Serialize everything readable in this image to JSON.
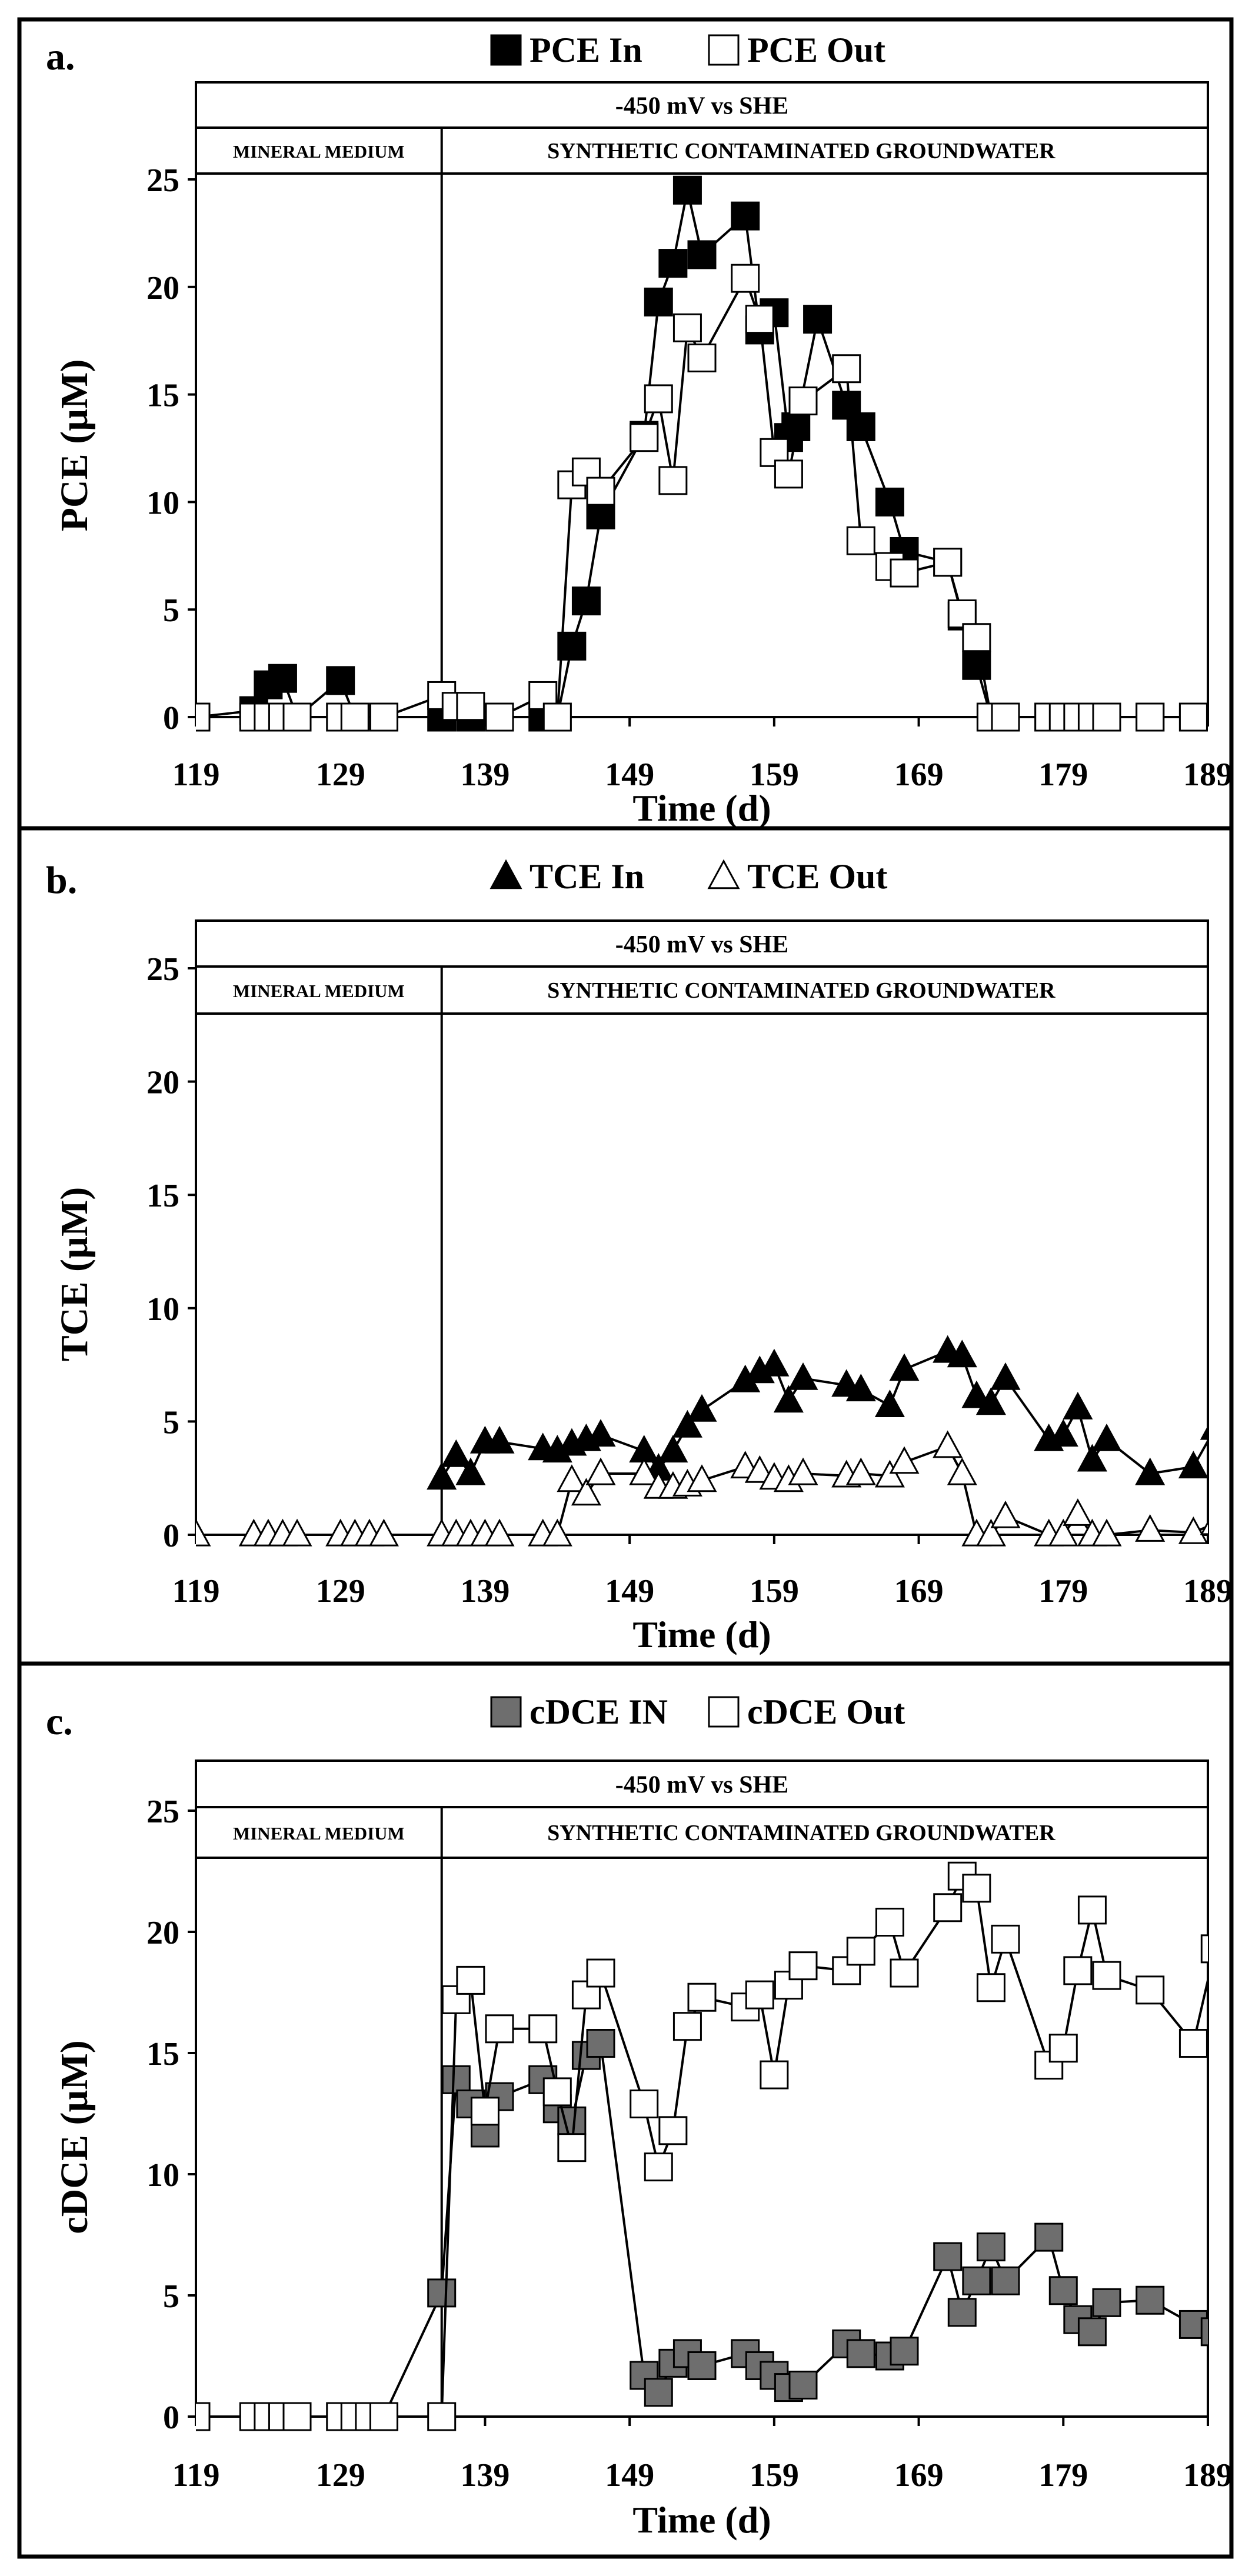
{
  "chart_data": [
    {
      "type": "line",
      "panel_label": "a.",
      "ylabel": "PCE (µM)",
      "xlabel": "Time (d)",
      "xlim": [
        119,
        189
      ],
      "ylim": [
        0,
        25
      ],
      "x_ticks": [
        "119",
        "129",
        "139",
        "149",
        "159",
        "169",
        "179",
        "189"
      ],
      "y_ticks": [
        "0",
        "5",
        "10",
        "15",
        "20",
        "25"
      ],
      "band_top": "-450 mV vs SHE",
      "band_left": "MINERAL MEDIUM",
      "band_right": "SYNTHETIC CONTAMINATED GROUNDWATER",
      "phase_boundary_x": 136,
      "grid": false,
      "legend_position": "top-center",
      "series": [
        {
          "name": "PCE In",
          "marker": "square",
          "fill": "#000000",
          "points": [
            [
              119,
              0
            ],
            [
              123,
              0.3
            ],
            [
              124,
              1.5
            ],
            [
              125,
              1.8
            ],
            [
              126,
              0
            ],
            [
              129,
              1.7
            ],
            [
              130,
              0
            ],
            [
              132,
              0
            ],
            [
              136,
              0
            ],
            [
              138,
              0
            ],
            [
              140,
              0
            ],
            [
              143,
              0
            ],
            [
              144,
              0
            ],
            [
              145,
              3.3
            ],
            [
              146,
              5.4
            ],
            [
              147,
              9.4
            ],
            [
              150,
              13.1
            ],
            [
              151,
              19.3
            ],
            [
              152,
              21.1
            ],
            [
              153,
              24.5
            ],
            [
              154,
              21.5
            ],
            [
              157,
              23.3
            ],
            [
              158,
              18.0
            ],
            [
              159,
              18.8
            ],
            [
              160,
              13.0
            ],
            [
              160.5,
              13.5
            ],
            [
              162,
              18.5
            ],
            [
              164,
              14.5
            ],
            [
              165,
              13.5
            ],
            [
              167,
              10
            ],
            [
              168,
              7.7
            ],
            [
              171,
              7.2
            ],
            [
              172,
              4.7
            ],
            [
              173,
              2.4
            ],
            [
              174,
              0
            ],
            [
              175,
              0
            ],
            [
              178,
              0
            ],
            [
              179,
              0
            ],
            [
              180,
              0
            ],
            [
              181,
              0
            ],
            [
              182,
              0
            ],
            [
              185,
              0
            ],
            [
              188,
              0
            ]
          ]
        },
        {
          "name": "PCE Out",
          "marker": "square",
          "fill": "#ffffff",
          "points": [
            [
              119,
              0
            ],
            [
              123,
              0
            ],
            [
              124,
              0
            ],
            [
              125,
              0
            ],
            [
              126,
              0
            ],
            [
              129,
              0
            ],
            [
              130,
              0
            ],
            [
              132,
              0
            ],
            [
              136,
              1
            ],
            [
              137,
              0.5
            ],
            [
              138,
              0.5
            ],
            [
              140,
              0
            ],
            [
              143,
              1
            ],
            [
              144,
              0
            ],
            [
              145,
              10.8
            ],
            [
              146,
              11.4
            ],
            [
              147,
              10.5
            ],
            [
              150,
              13.0
            ],
            [
              151,
              14.8
            ],
            [
              152,
              11.0
            ],
            [
              153,
              18.1
            ],
            [
              154,
              16.7
            ],
            [
              157,
              20.4
            ],
            [
              158,
              18.5
            ],
            [
              159,
              12.3
            ],
            [
              160,
              11.3
            ],
            [
              161,
              14.7
            ],
            [
              164,
              16.2
            ],
            [
              165,
              8.2
            ],
            [
              167,
              7.0
            ],
            [
              168,
              6.7
            ],
            [
              171,
              7.2
            ],
            [
              172,
              4.8
            ],
            [
              173,
              3.7
            ],
            [
              174,
              0
            ],
            [
              175,
              0
            ],
            [
              178,
              0
            ],
            [
              179,
              0
            ],
            [
              180,
              0
            ],
            [
              181,
              0
            ],
            [
              182,
              0
            ],
            [
              185,
              0
            ],
            [
              188,
              0
            ]
          ]
        }
      ]
    },
    {
      "type": "line",
      "panel_label": "b.",
      "ylabel": "TCE (µM)",
      "xlabel": "Time (d)",
      "xlim": [
        119,
        189
      ],
      "ylim": [
        0,
        25
      ],
      "x_ticks": [
        "119",
        "129",
        "139",
        "149",
        "159",
        "169",
        "179",
        "189"
      ],
      "y_ticks": [
        "0",
        "5",
        "10",
        "15",
        "20",
        "25"
      ],
      "band_top": "-450 mV vs SHE",
      "band_left": "MINERAL MEDIUM",
      "band_right": "SYNTHETIC CONTAMINATED GROUNDWATER",
      "phase_boundary_x": 136,
      "grid": false,
      "legend_position": "top-center",
      "series": [
        {
          "name": "TCE In",
          "marker": "triangle",
          "fill": "#000000",
          "points": [
            [
              136,
              2.5
            ],
            [
              137,
              3.5
            ],
            [
              138,
              2.7
            ],
            [
              139,
              4.1
            ],
            [
              140,
              4.1
            ],
            [
              143,
              3.8
            ],
            [
              144,
              3.7
            ],
            [
              145,
              4.0
            ],
            [
              146,
              4.2
            ],
            [
              147,
              4.4
            ],
            [
              150,
              3.7
            ],
            [
              151,
              2.9
            ],
            [
              152,
              3.7
            ],
            [
              153,
              4.8
            ],
            [
              154,
              5.5
            ],
            [
              157,
              6.8
            ],
            [
              158,
              7.2
            ],
            [
              159,
              7.5
            ],
            [
              160,
              5.9
            ],
            [
              161,
              6.9
            ],
            [
              164,
              6.6
            ],
            [
              165,
              6.4
            ],
            [
              167,
              5.7
            ],
            [
              168,
              7.3
            ],
            [
              171,
              8.1
            ],
            [
              172,
              7.9
            ],
            [
              173,
              6.1
            ],
            [
              174,
              5.8
            ],
            [
              175,
              6.9
            ],
            [
              178,
              4.2
            ],
            [
              179,
              4.4
            ],
            [
              180,
              5.6
            ],
            [
              181,
              3.3
            ],
            [
              182,
              4.2
            ],
            [
              185,
              2.7
            ],
            [
              188,
              3.0
            ],
            [
              189.5,
              4.7
            ]
          ]
        },
        {
          "name": "TCE Out",
          "marker": "triangle",
          "fill": "#ffffff",
          "points": [
            [
              119,
              0
            ],
            [
              123,
              0
            ],
            [
              124,
              0
            ],
            [
              125,
              0
            ],
            [
              126,
              0
            ],
            [
              129,
              0
            ],
            [
              130,
              0
            ],
            [
              131,
              0
            ],
            [
              132,
              0
            ],
            [
              136,
              0
            ],
            [
              137,
              0
            ],
            [
              138,
              0
            ],
            [
              139,
              0
            ],
            [
              140,
              0
            ],
            [
              143,
              0
            ],
            [
              144,
              0
            ],
            [
              145,
              2.4
            ],
            [
              146,
              1.8
            ],
            [
              147,
              2.7
            ],
            [
              150,
              2.7
            ],
            [
              151,
              2.1
            ],
            [
              152,
              2.1
            ],
            [
              153,
              2.2
            ],
            [
              154,
              2.4
            ],
            [
              157,
              3.0
            ],
            [
              158,
              2.8
            ],
            [
              159,
              2.5
            ],
            [
              160,
              2.4
            ],
            [
              161,
              2.7
            ],
            [
              164,
              2.6
            ],
            [
              165,
              2.7
            ],
            [
              167,
              2.6
            ],
            [
              168,
              3.2
            ],
            [
              171,
              3.9
            ],
            [
              172,
              2.7
            ],
            [
              173,
              0
            ],
            [
              174,
              0
            ],
            [
              175,
              0.8
            ],
            [
              178,
              0
            ],
            [
              179,
              0
            ],
            [
              180,
              0.9
            ],
            [
              181,
              0
            ],
            [
              182,
              0
            ],
            [
              185,
              0.2
            ],
            [
              188,
              0.1
            ],
            [
              189.5,
              0.5
            ]
          ]
        }
      ]
    },
    {
      "type": "line",
      "panel_label": "c.",
      "ylabel": "cDCE (µM)",
      "xlabel": "Time (d)",
      "xlim": [
        119,
        189
      ],
      "ylim": [
        0,
        25
      ],
      "x_ticks": [
        "119",
        "129",
        "139",
        "149",
        "159",
        "169",
        "179",
        "189"
      ],
      "y_ticks": [
        "0",
        "5",
        "10",
        "15",
        "20",
        "25"
      ],
      "band_top": "-450 mV vs SHE",
      "band_left": "MINERAL MEDIUM",
      "band_right": "SYNTHETIC CONTAMINATED GROUNDWATER",
      "phase_boundary_x": 136,
      "grid": false,
      "legend_position": "top-center",
      "series": [
        {
          "name": "cDCE IN",
          "marker": "square",
          "fill": "#6e6e6e",
          "points": [
            [
              132,
              0
            ],
            [
              136,
              5.1
            ],
            [
              137,
              13.9
            ],
            [
              138,
              12.9
            ],
            [
              139,
              11.7
            ],
            [
              140,
              13.2
            ],
            [
              143,
              13.9
            ],
            [
              144,
              12.7
            ],
            [
              145,
              12.2
            ],
            [
              146,
              14.9
            ],
            [
              147,
              15.4
            ],
            [
              150,
              1.7
            ],
            [
              151,
              1.0
            ],
            [
              152,
              2.2
            ],
            [
              153,
              2.6
            ],
            [
              154,
              2.1
            ],
            [
              157,
              2.6
            ],
            [
              158,
              2.1
            ],
            [
              159,
              1.7
            ],
            [
              160,
              1.2
            ],
            [
              161,
              1.3
            ],
            [
              164,
              3.0
            ],
            [
              165,
              2.6
            ],
            [
              167,
              2.5
            ],
            [
              168,
              2.7
            ],
            [
              171,
              6.6
            ],
            [
              172,
              4.3
            ],
            [
              173,
              5.6
            ],
            [
              174,
              7.0
            ],
            [
              175,
              5.6
            ],
            [
              178,
              7.4
            ],
            [
              179,
              5.2
            ],
            [
              180,
              4.0
            ],
            [
              181,
              3.5
            ],
            [
              182,
              4.7
            ],
            [
              185,
              4.8
            ],
            [
              188,
              3.8
            ],
            [
              189.5,
              3.5
            ]
          ]
        },
        {
          "name": "cDCE Out",
          "marker": "square",
          "fill": "#ffffff",
          "points": [
            [
              119,
              0
            ],
            [
              123,
              0
            ],
            [
              124,
              0
            ],
            [
              125,
              0
            ],
            [
              126,
              0
            ],
            [
              129,
              0
            ],
            [
              130,
              0
            ],
            [
              131,
              0
            ],
            [
              132,
              0
            ],
            [
              136,
              0
            ],
            [
              137,
              17.2
            ],
            [
              138,
              18.0
            ],
            [
              139,
              12.6
            ],
            [
              140,
              16.0
            ],
            [
              143,
              16.0
            ],
            [
              144,
              13.4
            ],
            [
              145,
              11.1
            ],
            [
              146,
              17.4
            ],
            [
              147,
              18.3
            ],
            [
              150,
              12.9
            ],
            [
              151,
              10.3
            ],
            [
              152,
              11.8
            ],
            [
              153,
              16.1
            ],
            [
              154,
              17.3
            ],
            [
              157,
              16.9
            ],
            [
              158,
              17.4
            ],
            [
              159,
              14.1
            ],
            [
              160,
              17.8
            ],
            [
              161,
              18.6
            ],
            [
              164,
              18.4
            ],
            [
              165,
              19.2
            ],
            [
              167,
              20.4
            ],
            [
              168,
              18.3
            ],
            [
              171,
              21.0
            ],
            [
              172,
              22.3
            ],
            [
              173,
              21.8
            ],
            [
              174,
              17.7
            ],
            [
              175,
              19.7
            ],
            [
              178,
              14.5
            ],
            [
              179,
              15.2
            ],
            [
              180,
              18.4
            ],
            [
              181,
              20.9
            ],
            [
              182,
              18.2
            ],
            [
              185,
              17.6
            ],
            [
              188,
              15.4
            ],
            [
              189.5,
              19.3
            ]
          ]
        }
      ]
    }
  ]
}
